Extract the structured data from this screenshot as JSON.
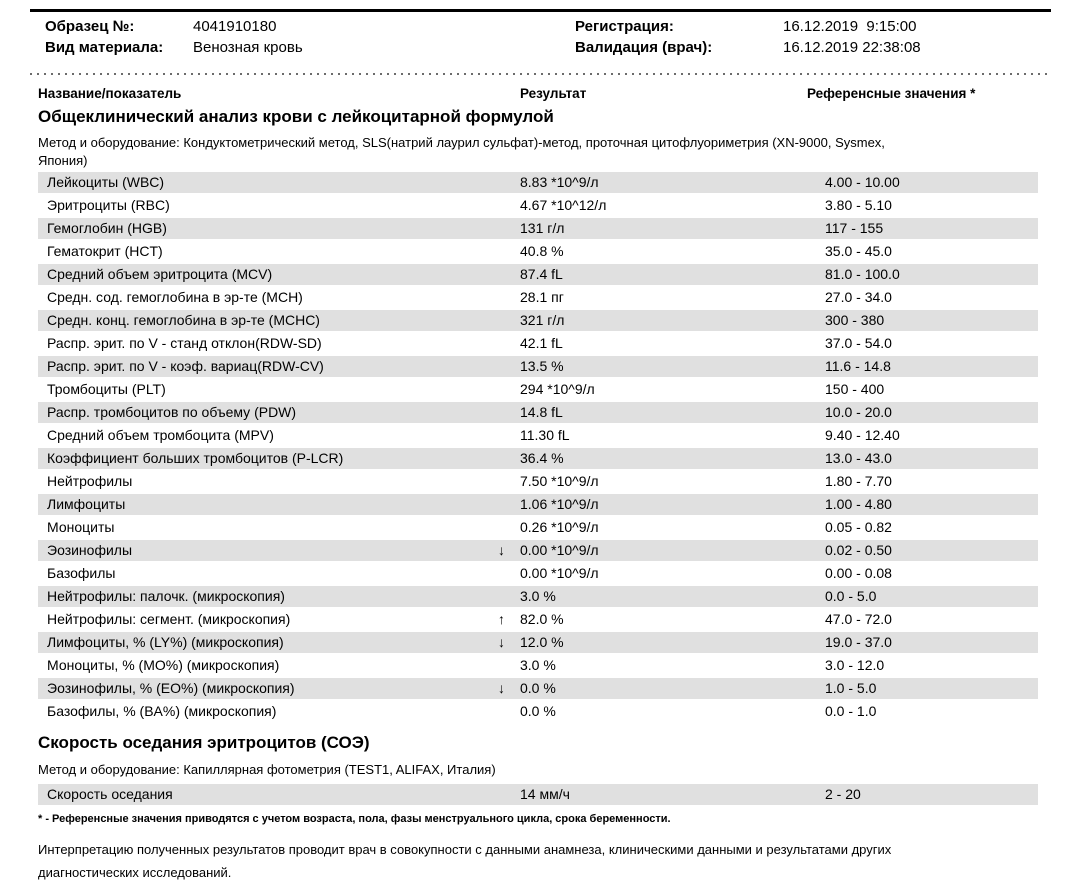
{
  "header": {
    "fields_left": [
      {
        "label": "Образец №:",
        "value": "4041910180"
      },
      {
        "label": "Вид материала:",
        "value": "Венозная кровь"
      }
    ],
    "fields_right": [
      {
        "label": "Регистрация:",
        "value": "16.12.2019  9:15:00"
      },
      {
        "label": "Валидация (врач):",
        "value": "16.12.2019 22:38:08"
      }
    ]
  },
  "columns": {
    "name": "Название/показатель",
    "result": "Результат",
    "reference": "Референсные значения *"
  },
  "sections": [
    {
      "title": "Общеклинический анализ крови с лейкоцитарной формулой",
      "method_lines": [
        "Метод и оборудование:  Кондуктометрический метод, SLS(натрий лаурил сульфат)-метод, проточная цитофлуориметрия (XN-9000, Sysmex,",
        "Япония)"
      ],
      "rows": [
        {
          "name": "Лейкоциты (WBC)",
          "flag": "",
          "result": "8.83 *10^9/л",
          "reference": "4.00 - 10.00"
        },
        {
          "name": "Эритроциты (RBC)",
          "flag": "",
          "result": "4.67 *10^12/л",
          "reference": "3.80 - 5.10"
        },
        {
          "name": "Гемоглобин (HGB)",
          "flag": "",
          "result": "131 г/л",
          "reference": "117 - 155"
        },
        {
          "name": "Гематокрит (HCT)",
          "flag": "",
          "result": "40.8 %",
          "reference": "35.0 - 45.0"
        },
        {
          "name": "Средний объем эритроцита (MCV)",
          "flag": "",
          "result": "87.4 fL",
          "reference": "81.0 - 100.0"
        },
        {
          "name": "Средн. сод. гемоглобина в эр-те (MCH)",
          "flag": "",
          "result": "28.1 пг",
          "reference": "27.0 - 34.0"
        },
        {
          "name": "Средн. конц. гемоглобина в эр-те (MCHC)",
          "flag": "",
          "result": "321 г/л",
          "reference": "300 - 380"
        },
        {
          "name": "Распр. эрит. по V - станд отклон(RDW-SD)",
          "flag": "",
          "result": "42.1 fL",
          "reference": "37.0 - 54.0"
        },
        {
          "name": "Распр. эрит. по V - коэф. вариац(RDW-CV)",
          "flag": "",
          "result": "13.5 %",
          "reference": "11.6 - 14.8"
        },
        {
          "name": "Тромбоциты (PLT)",
          "flag": "",
          "result": "294 *10^9/л",
          "reference": "150 - 400"
        },
        {
          "name": "Распр. тромбоцитов по объему (PDW)",
          "flag": "",
          "result": "14.8 fL",
          "reference": "10.0 - 20.0"
        },
        {
          "name": "Средний объем тромбоцита (MPV)",
          "flag": "",
          "result": "11.30 fL",
          "reference": "9.40 - 12.40"
        },
        {
          "name": "Коэффициент больших тромбоцитов (P-LCR)",
          "flag": "",
          "result": "36.4 %",
          "reference": "13.0 - 43.0"
        },
        {
          "name": "Нейтрофилы",
          "flag": "",
          "result": "7.50 *10^9/л",
          "reference": "1.80 - 7.70"
        },
        {
          "name": "Лимфоциты",
          "flag": "",
          "result": "1.06 *10^9/л",
          "reference": "1.00 - 4.80"
        },
        {
          "name": "Моноциты",
          "flag": "",
          "result": "0.26 *10^9/л",
          "reference": "0.05 - 0.82"
        },
        {
          "name": "Эозинофилы",
          "flag": "↓",
          "result": "0.00 *10^9/л",
          "reference": "0.02 - 0.50"
        },
        {
          "name": "Базофилы",
          "flag": "",
          "result": "0.00 *10^9/л",
          "reference": "0.00 - 0.08"
        },
        {
          "name": "Нейтрофилы: палочк. (микроскопия)",
          "flag": "",
          "result": "3.0 %",
          "reference": "0.0 - 5.0"
        },
        {
          "name": "Нейтрофилы: сегмент. (микроскопия)",
          "flag": "↑",
          "result": "82.0 %",
          "reference": "47.0 - 72.0"
        },
        {
          "name": "Лимфоциты, % (LY%) (микроскопия)",
          "flag": "↓",
          "result": "12.0 %",
          "reference": "19.0 - 37.0"
        },
        {
          "name": "Моноциты, % (MO%) (микроскопия)",
          "flag": "",
          "result": "3.0 %",
          "reference": "3.0 - 12.0"
        },
        {
          "name": "Эозинофилы, % (EO%) (микроскопия)",
          "flag": "↓",
          "result": "0.0 %",
          "reference": "1.0 - 5.0"
        },
        {
          "name": "Базофилы, % (BA%) (микроскопия)",
          "flag": "",
          "result": "0.0 %",
          "reference": "0.0 - 1.0"
        }
      ]
    },
    {
      "title": "Скорость оседания эритроцитов (СОЭ)",
      "method_lines": [
        "Метод и оборудование:  Капиллярная фотометрия (TEST1, ALIFAX, Италия)"
      ],
      "rows": [
        {
          "name": "Скорость оседания",
          "flag": "",
          "result": "14 мм/ч",
          "reference": "2 - 20"
        }
      ]
    }
  ],
  "footer": {
    "footnote_marker": "* -",
    "footnote_text": " Референсные значения приводятся с учетом возраста, пола, фазы менструального цикла, срока беременности.",
    "interpretation_lines": [
      "Интерпретацию полученных результатов проводит врач в совокупности с данными анамнеза, клиническими данными и результатами других",
      "диагностических исследований."
    ]
  },
  "colors": {
    "row_stripe": "#e0e0e0",
    "rule": "#000000"
  }
}
